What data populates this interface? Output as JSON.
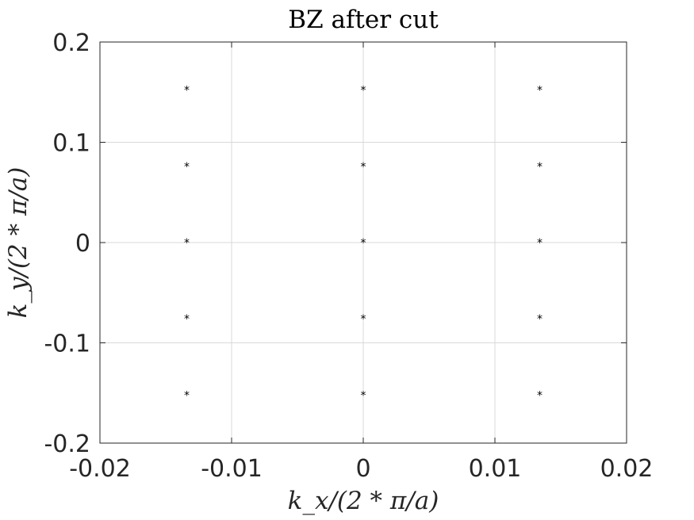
{
  "chart_data": {
    "type": "scatter",
    "title": "BZ after cut",
    "xlabel": "k_x/(2 * π/a)",
    "ylabel": "k_y/(2 * π/a)",
    "xlim": [
      -0.02,
      0.02
    ],
    "ylim": [
      -0.2,
      0.2
    ],
    "xticks": [
      -0.02,
      -0.01,
      0,
      0.01,
      0.02
    ],
    "xtick_labels": [
      "-0.02",
      "-0.01",
      "0",
      "0.01",
      "0.02"
    ],
    "yticks": [
      -0.2,
      -0.1,
      0,
      0.1,
      0.2
    ],
    "ytick_labels": [
      "-0.2",
      "-0.1",
      "0",
      "0.1",
      "0.2"
    ],
    "grid": true,
    "marker": "*",
    "marker_color": "#000000",
    "series": [
      {
        "x": [
          -0.0134,
          -0.0134,
          -0.0134,
          -0.0134,
          -0.0134,
          0,
          0,
          0,
          0,
          0,
          0.0134,
          0.0134,
          0.0134,
          0.0134,
          0.0134
        ],
        "y": [
          0.152,
          0.076,
          0,
          -0.076,
          -0.152,
          0.152,
          0.076,
          0,
          -0.076,
          -0.152,
          0.152,
          0.076,
          0,
          -0.076,
          -0.152
        ]
      }
    ]
  }
}
